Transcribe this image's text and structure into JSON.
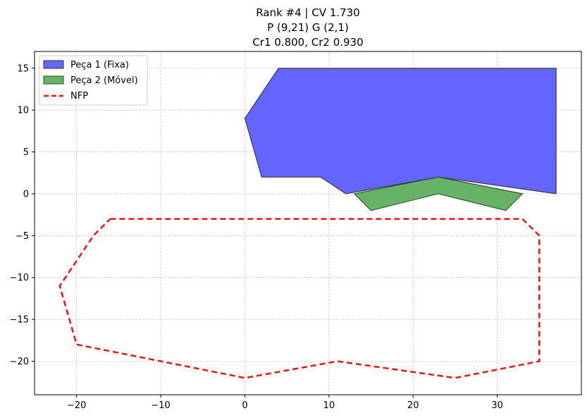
{
  "chart_data": {
    "type": "area",
    "title_lines": [
      "Rank #4 | CV 1.730",
      "P (9,21) G (2,1)",
      "Cr1 0.800, Cr2 0.930"
    ],
    "xlabel": "",
    "ylabel": "",
    "xlim": [
      -25,
      40
    ],
    "ylim": [
      -24,
      17
    ],
    "xticks": [
      -20,
      -10,
      0,
      10,
      20,
      30
    ],
    "yticks": [
      15,
      10,
      5,
      0,
      -5,
      -10,
      -15,
      -20
    ],
    "grid": true,
    "legend_position": "upper-left",
    "series": [
      {
        "name": "Peça 1 (Fixa)",
        "kind": "polygon",
        "fill": "#6464ff",
        "edge": "#333333",
        "points": [
          [
            4,
            15
          ],
          [
            37,
            15
          ],
          [
            37,
            0
          ],
          [
            23,
            2
          ],
          [
            12,
            0
          ],
          [
            9,
            2
          ],
          [
            2,
            2
          ],
          [
            0,
            9
          ]
        ]
      },
      {
        "name": "Peça 2 (Móvel)",
        "kind": "polygon",
        "fill": "#66b266",
        "edge": "#2e4d2e",
        "points": [
          [
            13,
            0
          ],
          [
            23,
            2
          ],
          [
            33,
            0
          ],
          [
            31,
            -2
          ],
          [
            23,
            0
          ],
          [
            15,
            -2
          ]
        ]
      },
      {
        "name": "NFP",
        "kind": "dashed-line",
        "color": "#ee1111",
        "points": [
          [
            -16,
            -3
          ],
          [
            33,
            -3
          ],
          [
            35,
            -5
          ],
          [
            35,
            -20
          ],
          [
            25,
            -22
          ],
          [
            11,
            -20
          ],
          [
            0,
            -22
          ],
          [
            -20,
            -18
          ],
          [
            -22,
            -11
          ],
          [
            -18,
            -5
          ],
          [
            -16,
            -3
          ]
        ]
      }
    ]
  }
}
